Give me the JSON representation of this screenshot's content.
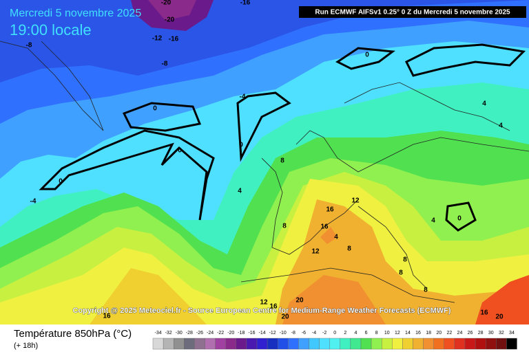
{
  "header": {
    "date": "Mercredi 5 novembre 2025",
    "time": "19:00 locale",
    "run": "Run ECMWF AIFSv1 0.25° 0 Z du Mercredi 5 novembre 2025"
  },
  "copyright": "Copyright @ 2025 Meteociel.fr - Source European Centre for Medium-Range Weather Forecasts (ECMWF)",
  "contour_labels": [
    -20,
    -16,
    -20,
    -12,
    -16,
    -8,
    -8,
    0,
    -4,
    0,
    0,
    0,
    4,
    4,
    8,
    0,
    -4,
    4,
    12,
    16,
    8,
    16,
    4,
    0,
    4,
    8,
    12,
    8,
    8,
    8,
    12,
    16,
    20,
    20,
    16,
    16,
    20
  ],
  "legend": {
    "title": "Température 850hPa (°C)",
    "subtitle": "(+ 18h)",
    "ticks": [
      -34,
      -32,
      -30,
      -28,
      -26,
      -24,
      -22,
      -20,
      -18,
      -16,
      -14,
      -12,
      -10,
      -8,
      -6,
      -4,
      -2,
      0,
      2,
      4,
      6,
      8,
      10,
      12,
      14,
      16,
      18,
      20,
      22,
      24,
      26,
      28,
      30,
      32,
      34
    ],
    "colors": [
      "#d8d8d8",
      "#b4b4b4",
      "#909090",
      "#6c6c7c",
      "#907090",
      "#b070b0",
      "#a040a0",
      "#8a2a8a",
      "#6a1a8a",
      "#4a1ab0",
      "#3020d0",
      "#1830c0",
      "#2050e8",
      "#3070ff",
      "#40a0ff",
      "#40c8ff",
      "#50e0ff",
      "#50f0f0",
      "#40f0c0",
      "#40e890",
      "#50e050",
      "#90f050",
      "#c8f040",
      "#f0f040",
      "#f0d030",
      "#f0b030",
      "#f09030",
      "#f07020",
      "#f05020",
      "#e03020",
      "#c81818",
      "#b01010",
      "#901010",
      "#701010",
      "#000000"
    ]
  }
}
